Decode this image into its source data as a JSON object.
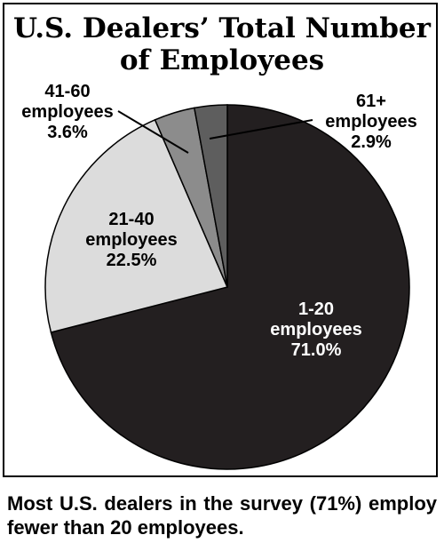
{
  "chart_data": {
    "type": "pie",
    "title_lines": [
      "U.S. Dealers’ Total Number",
      "of Employees"
    ],
    "slices": [
      {
        "label_lines": [
          "1-20",
          "employees"
        ],
        "pct_label": "71.0%",
        "value": 71.0,
        "color": "#231f20",
        "text_color": "#ffffff"
      },
      {
        "label_lines": [
          "21-40",
          "employees"
        ],
        "pct_label": "22.5%",
        "value": 22.5,
        "color": "#dcdcdc",
        "text_color": "#000000"
      },
      {
        "label_lines": [
          "41-60",
          "employees"
        ],
        "pct_label": "3.6%",
        "value": 3.6,
        "color": "#8c8c8c",
        "text_color": "#000000"
      },
      {
        "label_lines": [
          "61+",
          "employees"
        ],
        "pct_label": "2.9%",
        "value": 2.9,
        "color": "#5e5e5e",
        "text_color": "#000000"
      }
    ]
  },
  "caption": "Most U.S. dealers in the survey (71%) employ fewer than 20 employees."
}
